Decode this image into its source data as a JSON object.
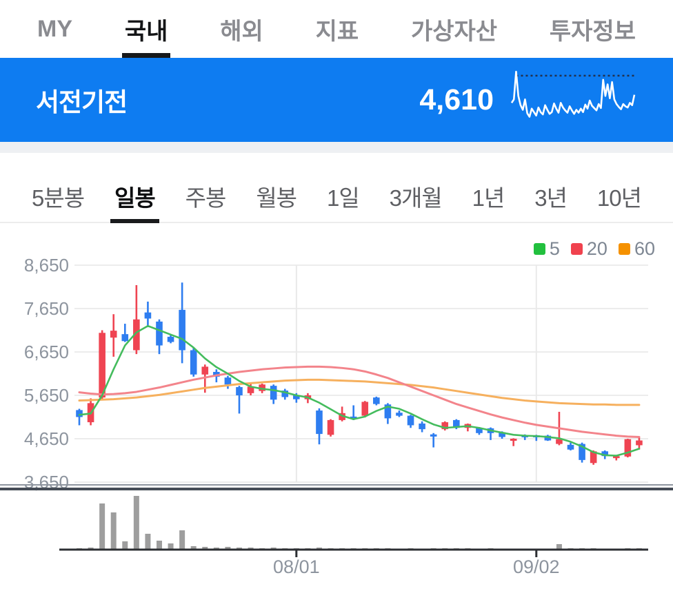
{
  "header_tabs": {
    "items": [
      {
        "label": "MY",
        "active": false
      },
      {
        "label": "국내",
        "active": true
      },
      {
        "label": "해외",
        "active": false
      },
      {
        "label": "지표",
        "active": false
      },
      {
        "label": "가상자산",
        "active": false
      },
      {
        "label": "투자정보",
        "active": false
      }
    ]
  },
  "stock_header": {
    "name": "서전기전",
    "price": "4,610",
    "bg_color": "#0e7cf1",
    "spark_color": "#ffffff",
    "spark_dotted_color": "#22304d",
    "sparkline": [
      46,
      52,
      100,
      58,
      42,
      34,
      52,
      28,
      22,
      36,
      30,
      24,
      38,
      30,
      26,
      42,
      34,
      27,
      30,
      45,
      36,
      29,
      46,
      38,
      33,
      29,
      40,
      33,
      27,
      34,
      29,
      36,
      30,
      43,
      36,
      50,
      41,
      37,
      33,
      44,
      37,
      86,
      58,
      78,
      54,
      82,
      52,
      44,
      39,
      35,
      44,
      40,
      38,
      46,
      42,
      60
    ]
  },
  "period_tabs": {
    "items": [
      {
        "label": "5분봉",
        "active": false
      },
      {
        "label": "일봉",
        "active": true
      },
      {
        "label": "주봉",
        "active": false
      },
      {
        "label": "월봉",
        "active": false
      },
      {
        "label": "1일",
        "active": false
      },
      {
        "label": "3개월",
        "active": false
      },
      {
        "label": "1년",
        "active": false
      },
      {
        "label": "3년",
        "active": false
      },
      {
        "label": "10년",
        "active": false
      }
    ]
  },
  "chart_data": {
    "type": "candlestick+volume",
    "legend": [
      {
        "label": "5",
        "color": "#22c03e"
      },
      {
        "label": "20",
        "color": "#f0424e"
      },
      {
        "label": "60",
        "color": "#f59100"
      }
    ],
    "ylim": [
      3650,
      8650
    ],
    "grid": true,
    "y_ticks": [
      {
        "value": 8650,
        "label": "8,650"
      },
      {
        "value": 7650,
        "label": "7,650"
      },
      {
        "value": 6650,
        "label": "6,650"
      },
      {
        "value": 5650,
        "label": "5,650"
      },
      {
        "value": 4650,
        "label": "4,650"
      },
      {
        "value": 3650,
        "label": "3,650"
      }
    ],
    "x_ticks": [
      {
        "label": "08/01",
        "index": 19
      },
      {
        "label": "09/02",
        "index": 40
      }
    ],
    "candles_ohlcv": [
      [
        5310,
        5340,
        4960,
        5150,
        2
      ],
      [
        5030,
        5580,
        4960,
        5470,
        3
      ],
      [
        5600,
        7150,
        5550,
        7090,
        67
      ],
      [
        6980,
        7520,
        6540,
        7140,
        54
      ],
      [
        7060,
        7300,
        6880,
        6900,
        12
      ],
      [
        6690,
        8190,
        6600,
        7400,
        78
      ],
      [
        7560,
        7810,
        7220,
        7420,
        23
      ],
      [
        7350,
        7400,
        6600,
        6800,
        13
      ],
      [
        7000,
        7050,
        6850,
        6880,
        9
      ],
      [
        7620,
        8250,
        6390,
        6690,
        28
      ],
      [
        6690,
        6740,
        6080,
        6130,
        5
      ],
      [
        6130,
        6360,
        5710,
        6310,
        4
      ],
      [
        6190,
        6250,
        5950,
        6080,
        3
      ],
      [
        6060,
        6100,
        5800,
        5900,
        4
      ],
      [
        5840,
        5870,
        5230,
        5650,
        3
      ],
      [
        5700,
        5950,
        5650,
        5850,
        3
      ],
      [
        5750,
        5920,
        5700,
        5900,
        2
      ],
      [
        5870,
        5900,
        5450,
        5550,
        3
      ],
      [
        5760,
        5800,
        5550,
        5610,
        2
      ],
      [
        5650,
        5700,
        5480,
        5560,
        2
      ],
      [
        5560,
        5700,
        5470,
        5650,
        2
      ],
      [
        5300,
        5350,
        4520,
        4760,
        3
      ],
      [
        4740,
        5100,
        4700,
        5080,
        2
      ],
      [
        5080,
        5390,
        5050,
        5240,
        2
      ],
      [
        5160,
        5420,
        5080,
        5110,
        2
      ],
      [
        5180,
        5520,
        5140,
        5500,
        2
      ],
      [
        5600,
        5620,
        5420,
        5450,
        2
      ],
      [
        5440,
        5470,
        4990,
        5120,
        2
      ],
      [
        5250,
        5300,
        5150,
        5180,
        1
      ],
      [
        5180,
        5200,
        4900,
        4960,
        2
      ],
      [
        5000,
        5050,
        4800,
        4870,
        1
      ],
      [
        4750,
        4780,
        4450,
        4700,
        2
      ],
      [
        4870,
        5050,
        4840,
        5030,
        2
      ],
      [
        5080,
        5100,
        4870,
        4900,
        2
      ],
      [
        4900,
        5000,
        4820,
        4990,
        2
      ],
      [
        4900,
        4920,
        4740,
        4780,
        1
      ],
      [
        4890,
        4910,
        4620,
        4780,
        2
      ],
      [
        4800,
        4820,
        4650,
        4690,
        1
      ],
      [
        4650,
        4660,
        4480,
        4650,
        1
      ],
      [
        4730,
        4750,
        4620,
        4720,
        1
      ],
      [
        4730,
        4740,
        4600,
        4710,
        1
      ],
      [
        4720,
        4740,
        4600,
        4610,
        1
      ],
      [
        4530,
        5270,
        4500,
        4640,
        8
      ],
      [
        4510,
        4560,
        4380,
        4400,
        2
      ],
      [
        4530,
        4560,
        4100,
        4160,
        2
      ],
      [
        4090,
        4380,
        4050,
        4360,
        2
      ],
      [
        4360,
        4380,
        4180,
        4250,
        1
      ],
      [
        4250,
        4270,
        4150,
        4250,
        1
      ],
      [
        4240,
        4650,
        4220,
        4640,
        2
      ],
      [
        4500,
        4700,
        4400,
        4610,
        2
      ]
    ],
    "ma5": [
      5200,
      5230,
      5650,
      6250,
      6800,
      7100,
      7250,
      7150,
      7050,
      6950,
      6750,
      6500,
      6300,
      6150,
      5980,
      5850,
      5800,
      5770,
      5720,
      5650,
      5600,
      5480,
      5330,
      5180,
      5100,
      5160,
      5290,
      5390,
      5340,
      5230,
      5100,
      4980,
      4900,
      4920,
      4940,
      4900,
      4840,
      4790,
      4740,
      4720,
      4710,
      4690,
      4660,
      4580,
      4470,
      4340,
      4270,
      4260,
      4330,
      4420
    ],
    "ma20": [
      5720,
      5690,
      5670,
      5680,
      5700,
      5730,
      5780,
      5830,
      5890,
      5950,
      6010,
      6060,
      6110,
      6150,
      6190,
      6220,
      6250,
      6270,
      6290,
      6300,
      6310,
      6310,
      6300,
      6280,
      6250,
      6200,
      6130,
      6050,
      5950,
      5850,
      5750,
      5650,
      5550,
      5450,
      5370,
      5290,
      5210,
      5140,
      5080,
      5020,
      4970,
      4930,
      4890,
      4850,
      4810,
      4780,
      4750,
      4720,
      4700,
      4690
    ],
    "ma60": [
      5530,
      5540,
      5550,
      5560,
      5580,
      5600,
      5630,
      5660,
      5700,
      5740,
      5780,
      5820,
      5850,
      5880,
      5910,
      5930,
      5950,
      5970,
      5990,
      6000,
      6010,
      6010,
      6000,
      5990,
      5980,
      5970,
      5950,
      5930,
      5910,
      5890,
      5860,
      5830,
      5790,
      5750,
      5710,
      5670,
      5630,
      5590,
      5560,
      5530,
      5510,
      5490,
      5470,
      5460,
      5450,
      5440,
      5440,
      5430,
      5430,
      5430
    ],
    "colors": {
      "up": "#ef4452",
      "down": "#2e7df0",
      "ma5_line": "#44bc5d",
      "ma20_line": "#f3848b",
      "ma60_line": "#f6b05e",
      "volume": "#9e9e9e",
      "grid": "#ececec",
      "axis": "#2d2f33",
      "separator": "#454c56",
      "tick_label": "#8d949e"
    }
  }
}
